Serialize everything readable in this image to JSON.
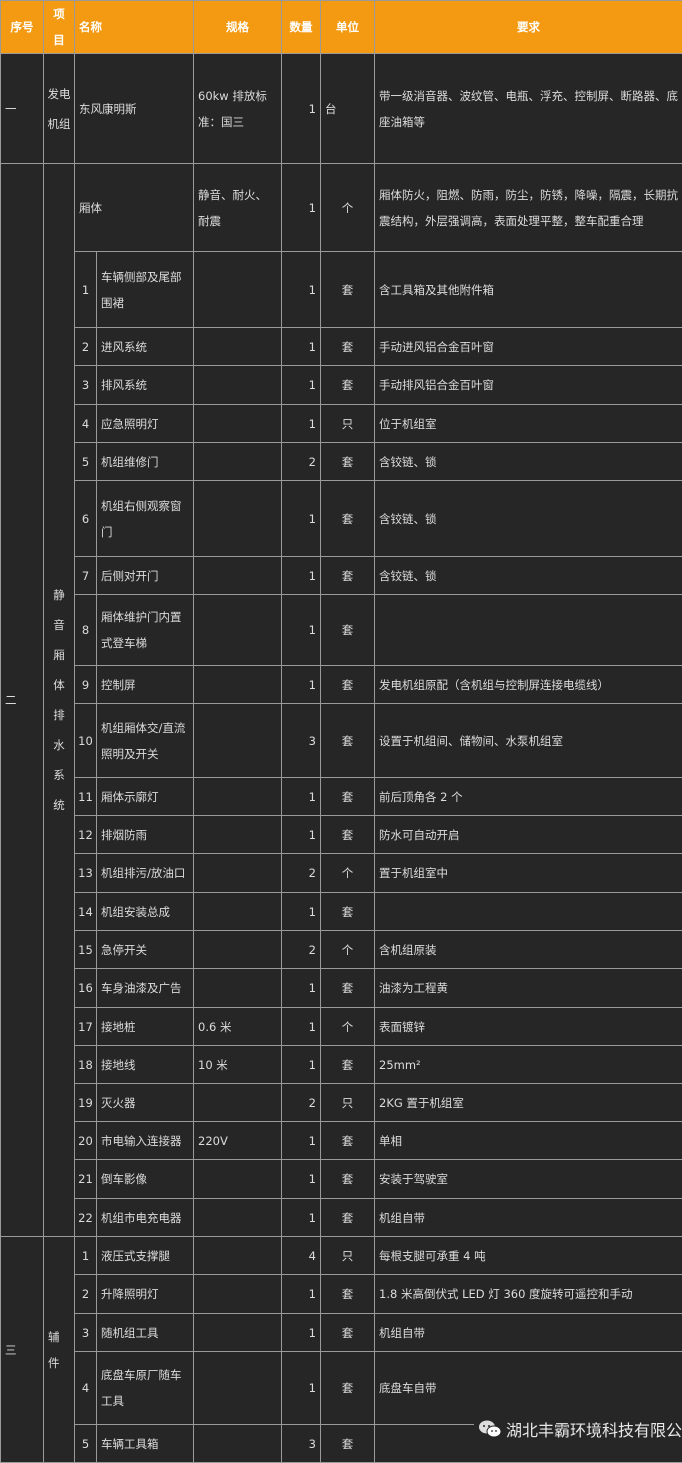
{
  "headers": {
    "no": "序号",
    "item": "项目",
    "name": "名称",
    "spec": "规格",
    "qty": "数量",
    "unit": "单位",
    "req": "要求"
  },
  "section1": {
    "no": "一",
    "item": "发电机组",
    "name": "东风康明斯",
    "spec": "60kw 排放标准：国三",
    "qty": "1",
    "unit": "台",
    "req": "带一级消音器、波纹管、电瓶、浮充、控制屏、断路器、底座油箱等"
  },
  "section2": {
    "no": "二",
    "item": "静音厢体排水系统",
    "head": {
      "name": "厢体",
      "spec": "静音、耐火、耐震",
      "qty": "1",
      "unit": "个",
      "req": "厢体防火，阻燃、防雨，防尘，防锈，降噪，隔震，长期抗震结构，外层强调高，表面处理平整，整车配重合理"
    },
    "rows": [
      {
        "n": "1",
        "name": "车辆侧部及尾部围裙",
        "spec": "",
        "qty": "1",
        "unit": "套",
        "req": "含工具箱及其他附件箱"
      },
      {
        "n": "2",
        "name": "进风系统",
        "spec": "",
        "qty": "1",
        "unit": "套",
        "req": "手动进风铝合金百叶窗"
      },
      {
        "n": "3",
        "name": "排风系统",
        "spec": "",
        "qty": "1",
        "unit": "套",
        "req": "手动排风铝合金百叶窗"
      },
      {
        "n": "4",
        "name": "应急照明灯",
        "spec": "",
        "qty": "1",
        "unit": "只",
        "req": "位于机组室"
      },
      {
        "n": "5",
        "name": "机组维修门",
        "spec": "",
        "qty": "2",
        "unit": "套",
        "req": "含铰链、锁"
      },
      {
        "n": "6",
        "name": "机组右侧观察窗门",
        "spec": "",
        "qty": "1",
        "unit": "套",
        "req": "含铰链、锁"
      },
      {
        "n": "7",
        "name": "后侧对开门",
        "spec": "",
        "qty": "1",
        "unit": "套",
        "req": "含铰链、锁"
      },
      {
        "n": "8",
        "name": "厢体维护门内置式登车梯",
        "spec": "",
        "qty": "1",
        "unit": "套",
        "req": ""
      },
      {
        "n": "9",
        "name": "控制屏",
        "spec": "",
        "qty": "1",
        "unit": "套",
        "req": "发电机组原配（含机组与控制屏连接电缆线）"
      },
      {
        "n": "10",
        "name": "机组厢体交/直流照明及开关",
        "spec": "",
        "qty": "3",
        "unit": "套",
        "req": "设置于机组间、储物间、水泵机组室"
      },
      {
        "n": "11",
        "name": "厢体示廓灯",
        "spec": "",
        "qty": "1",
        "unit": "套",
        "req": "前后顶角各 2 个"
      },
      {
        "n": "12",
        "name": "排烟防雨",
        "spec": "",
        "qty": "1",
        "unit": "套",
        "req": "防水可自动开启"
      },
      {
        "n": "13",
        "name": "机组排污/放油口",
        "spec": "",
        "qty": "2",
        "unit": "个",
        "req": "置于机组室中"
      },
      {
        "n": "14",
        "name": "机组安装总成",
        "spec": "",
        "qty": "1",
        "unit": "套",
        "req": ""
      },
      {
        "n": "15",
        "name": "急停开关",
        "spec": "",
        "qty": "2",
        "unit": "个",
        "req": "含机组原装"
      },
      {
        "n": "16",
        "name": "车身油漆及广告",
        "spec": "",
        "qty": "1",
        "unit": "套",
        "req": "油漆为工程黄"
      },
      {
        "n": "17",
        "name": "接地桩",
        "spec": "0.6 米",
        "qty": "1",
        "unit": "个",
        "req": "表面镀锌"
      },
      {
        "n": "18",
        "name": "接地线",
        "spec": "10 米",
        "qty": "1",
        "unit": "套",
        "req": "25mm²"
      },
      {
        "n": "19",
        "name": "灭火器",
        "spec": "",
        "qty": "2",
        "unit": "只",
        "req": "2KG 置于机组室"
      },
      {
        "n": "20",
        "name": "市电输入连接器",
        "spec": "220V",
        "qty": "1",
        "unit": "套",
        "req": "单相"
      },
      {
        "n": "21",
        "name": "倒车影像",
        "spec": "",
        "qty": "1",
        "unit": "套",
        "req": "安装于驾驶室"
      },
      {
        "n": "22",
        "name": "机组市电充电器",
        "spec": "",
        "qty": "1",
        "unit": "套",
        "req": "机组自带"
      }
    ]
  },
  "section3": {
    "no": "三",
    "item": "辅件",
    "rows": [
      {
        "n": "1",
        "name": "液压式支撑腿",
        "spec": "",
        "qty": "4",
        "unit": "只",
        "req": "每根支腿可承重 4 吨"
      },
      {
        "n": "2",
        "name": "升降照明灯",
        "spec": "",
        "qty": "1",
        "unit": "套",
        "req": "1.8 米高倒伏式 LED 灯 360 度旋转可遥控和手动"
      },
      {
        "n": "3",
        "name": "随机组工具",
        "spec": "",
        "qty": "1",
        "unit": "套",
        "req": "机组自带"
      },
      {
        "n": "4",
        "name": "底盘车原厂随车工具",
        "spec": "",
        "qty": "1",
        "unit": "套",
        "req": "底盘车自带"
      },
      {
        "n": "5",
        "name": "车辆工具箱",
        "spec": "",
        "qty": "3",
        "unit": "套",
        "req": ""
      }
    ]
  },
  "watermark": {
    "text": "湖北丰霸环境科技有限公",
    "icon": "wechat-icon"
  }
}
